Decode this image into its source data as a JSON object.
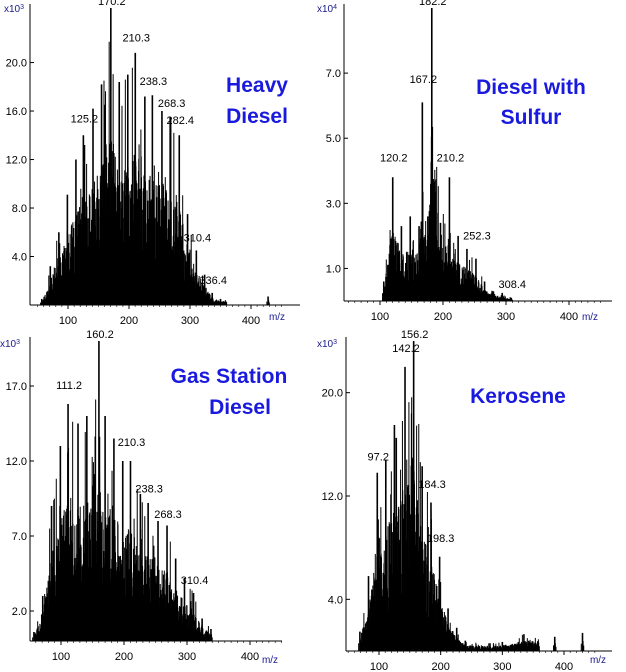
{
  "figure": {
    "panels": [
      {
        "title_lines": [
          "Heavy",
          "Diesel"
        ]
      },
      {
        "title_lines": [
          "Diesel with",
          "Sulfur"
        ]
      },
      {
        "title_lines": [
          "Gas Station",
          "Diesel"
        ]
      },
      {
        "title_lines": [
          "Kerosene"
        ]
      }
    ]
  },
  "chart_data": [
    {
      "type": "bar",
      "title": "Heavy Diesel",
      "xlabel": "m/z",
      "ylabel": "",
      "y_multiplier": "x10^3",
      "xlim": [
        45,
        460
      ],
      "ylim": [
        0,
        24.5
      ],
      "x_ticks": [
        100,
        200,
        300,
        400
      ],
      "y_ticks": [
        4.0,
        8.0,
        12.0,
        16.0,
        20.0
      ],
      "y_tick_labels": [
        "4.0",
        "8.0",
        "12.0",
        "16.0",
        "20.0"
      ],
      "x_tick_labels": [
        "100",
        "200",
        "300",
        "400"
      ],
      "peak_labels": [
        {
          "mz": 125.2,
          "label": "125.2",
          "y": 14.8
        },
        {
          "mz": 170.2,
          "label": "170.2",
          "y": 24.5
        },
        {
          "mz": 210.3,
          "label": "210.3",
          "y": 21.5
        },
        {
          "mz": 238.3,
          "label": "238.3",
          "y": 17.9
        },
        {
          "mz": 268.3,
          "label": "268.3",
          "y": 16.1
        },
        {
          "mz": 282.4,
          "label": "282.4",
          "y": 14.7
        },
        {
          "mz": 310.4,
          "label": "310.4",
          "y": 5.0
        },
        {
          "mz": 336.4,
          "label": "336.4",
          "y": 1.5
        }
      ],
      "peaks": [
        [
          57,
          0.5
        ],
        [
          71,
          3.2
        ],
        [
          85,
          6.0
        ],
        [
          99,
          9.1
        ],
        [
          113,
          12.0
        ],
        [
          125.2,
          14.0
        ],
        [
          127,
          13.2
        ],
        [
          141,
          16.2
        ],
        [
          155,
          18.2
        ],
        [
          170.2,
          24.5
        ],
        [
          184,
          18.4
        ],
        [
          198,
          19.0
        ],
        [
          210.3,
          20.8
        ],
        [
          226,
          17.2
        ],
        [
          238.3,
          17.3
        ],
        [
          254,
          16.0
        ],
        [
          268.3,
          15.5
        ],
        [
          282.4,
          14.0
        ],
        [
          296,
          7.5
        ],
        [
          310.4,
          4.5
        ],
        [
          324,
          2.5
        ],
        [
          336.4,
          1.0
        ],
        [
          350,
          0.5
        ],
        [
          428,
          0.7
        ]
      ]
    },
    {
      "type": "bar",
      "title": "Diesel with Sulfur",
      "xlabel": "m/z",
      "ylabel": "",
      "y_multiplier": "x10^4",
      "xlim": [
        45,
        460
      ],
      "ylim": [
        0,
        9.0
      ],
      "x_ticks": [
        100,
        200,
        300,
        400
      ],
      "y_ticks": [
        1.0,
        3.0,
        5.0,
        7.0
      ],
      "y_tick_labels": [
        "1.0",
        "3.0",
        "5.0",
        "7.0"
      ],
      "x_tick_labels": [
        "100",
        "200",
        "300",
        "400"
      ],
      "peak_labels": [
        {
          "mz": 120.2,
          "label": "120.2",
          "y": 4.2
        },
        {
          "mz": 167.2,
          "label": "167.2",
          "y": 6.6
        },
        {
          "mz": 182.2,
          "label": "182.2",
          "y": 9.0
        },
        {
          "mz": 210.2,
          "label": "210.2",
          "y": 4.2
        },
        {
          "mz": 252.3,
          "label": "252.3",
          "y": 1.8
        },
        {
          "mz": 308.4,
          "label": "308.4",
          "y": 0.3
        }
      ],
      "peaks": [
        [
          106,
          0.6
        ],
        [
          120.2,
          3.8
        ],
        [
          134,
          2.3
        ],
        [
          148,
          2.6
        ],
        [
          162,
          2.3
        ],
        [
          167.2,
          6.1
        ],
        [
          176,
          2.6
        ],
        [
          182.2,
          9.0
        ],
        [
          196,
          2.4
        ],
        [
          210.2,
          3.8
        ],
        [
          224,
          2.0
        ],
        [
          238,
          1.6
        ],
        [
          252.3,
          1.3
        ],
        [
          266,
          0.6
        ],
        [
          280,
          0.3
        ],
        [
          294,
          0.25
        ],
        [
          308.4,
          0.1
        ]
      ]
    },
    {
      "type": "bar",
      "title": "Gas Station Diesel",
      "xlabel": "m/z",
      "ylabel": "",
      "y_multiplier": "x10^3",
      "xlim": [
        45,
        460
      ],
      "ylim": [
        0,
        20.0
      ],
      "x_ticks": [
        100,
        200,
        300,
        400
      ],
      "y_ticks": [
        2.0,
        7.0,
        12.0,
        17.0
      ],
      "y_tick_labels": [
        "2.0",
        "7.0",
        "12.0",
        "17.0"
      ],
      "x_tick_labels": [
        "100",
        "200",
        "300",
        "400"
      ],
      "peak_labels": [
        {
          "mz": 111.2,
          "label": "111.2",
          "y": 16.6
        },
        {
          "mz": 160.2,
          "label": "160.2",
          "y": 20.0
        },
        {
          "mz": 210.3,
          "label": "210.3",
          "y": 12.8
        },
        {
          "mz": 238.3,
          "label": "238.3",
          "y": 9.7
        },
        {
          "mz": 268.3,
          "label": "268.3",
          "y": 8.0
        },
        {
          "mz": 310.4,
          "label": "310.4",
          "y": 3.6
        }
      ],
      "peaks": [
        [
          57,
          0.6
        ],
        [
          71,
          3.0
        ],
        [
          85,
          9.0
        ],
        [
          99,
          13.0
        ],
        [
          111.2,
          15.8
        ],
        [
          127,
          14.5
        ],
        [
          141,
          15.0
        ],
        [
          160.2,
          20.0
        ],
        [
          170,
          15.0
        ],
        [
          184,
          13.5
        ],
        [
          198,
          12.0
        ],
        [
          210.3,
          12.0
        ],
        [
          226,
          9.8
        ],
        [
          238.3,
          9.2
        ],
        [
          254,
          8.0
        ],
        [
          268.3,
          7.7
        ],
        [
          282,
          5.5
        ],
        [
          296,
          4.2
        ],
        [
          310.4,
          3.2
        ],
        [
          324,
          1.5
        ],
        [
          338,
          0.8
        ]
      ]
    },
    {
      "type": "bar",
      "title": "Kerosene",
      "xlabel": "m/z",
      "ylabel": "",
      "y_multiplier": "x10^3",
      "xlim": [
        45,
        460
      ],
      "ylim": [
        0,
        24.0
      ],
      "x_ticks": [
        100,
        200,
        300,
        400
      ],
      "y_ticks": [
        4.0,
        12.0,
        20.0
      ],
      "y_tick_labels": [
        "4.0",
        "12.0",
        "20.0"
      ],
      "x_tick_labels": [
        "100",
        "200",
        "300",
        "400"
      ],
      "peak_labels": [
        {
          "mz": 97.2,
          "label": "97.2",
          "y": 14.5
        },
        {
          "mz": 142.2,
          "label": "142.2",
          "y": 22.9
        },
        {
          "mz": 156.2,
          "label": "156.2",
          "y": 24.0
        },
        {
          "mz": 184.3,
          "label": "184.3",
          "y": 12.4
        },
        {
          "mz": 198.3,
          "label": "198.3",
          "y": 8.2
        }
      ],
      "peaks": [
        [
          69,
          1.5
        ],
        [
          83,
          5.8
        ],
        [
          97.2,
          13.8
        ],
        [
          111,
          14.8
        ],
        [
          125,
          17.5
        ],
        [
          128,
          16.5
        ],
        [
          142.2,
          22.0
        ],
        [
          156.2,
          24.0
        ],
        [
          170,
          14.3
        ],
        [
          184.3,
          11.5
        ],
        [
          198.3,
          7.3
        ],
        [
          212,
          3.3
        ],
        [
          226,
          1.8
        ],
        [
          240,
          0.8
        ],
        [
          280,
          0.6
        ],
        [
          300,
          0.7
        ],
        [
          335,
          1.3
        ],
        [
          385,
          1.1
        ],
        [
          430,
          1.4
        ]
      ]
    }
  ]
}
